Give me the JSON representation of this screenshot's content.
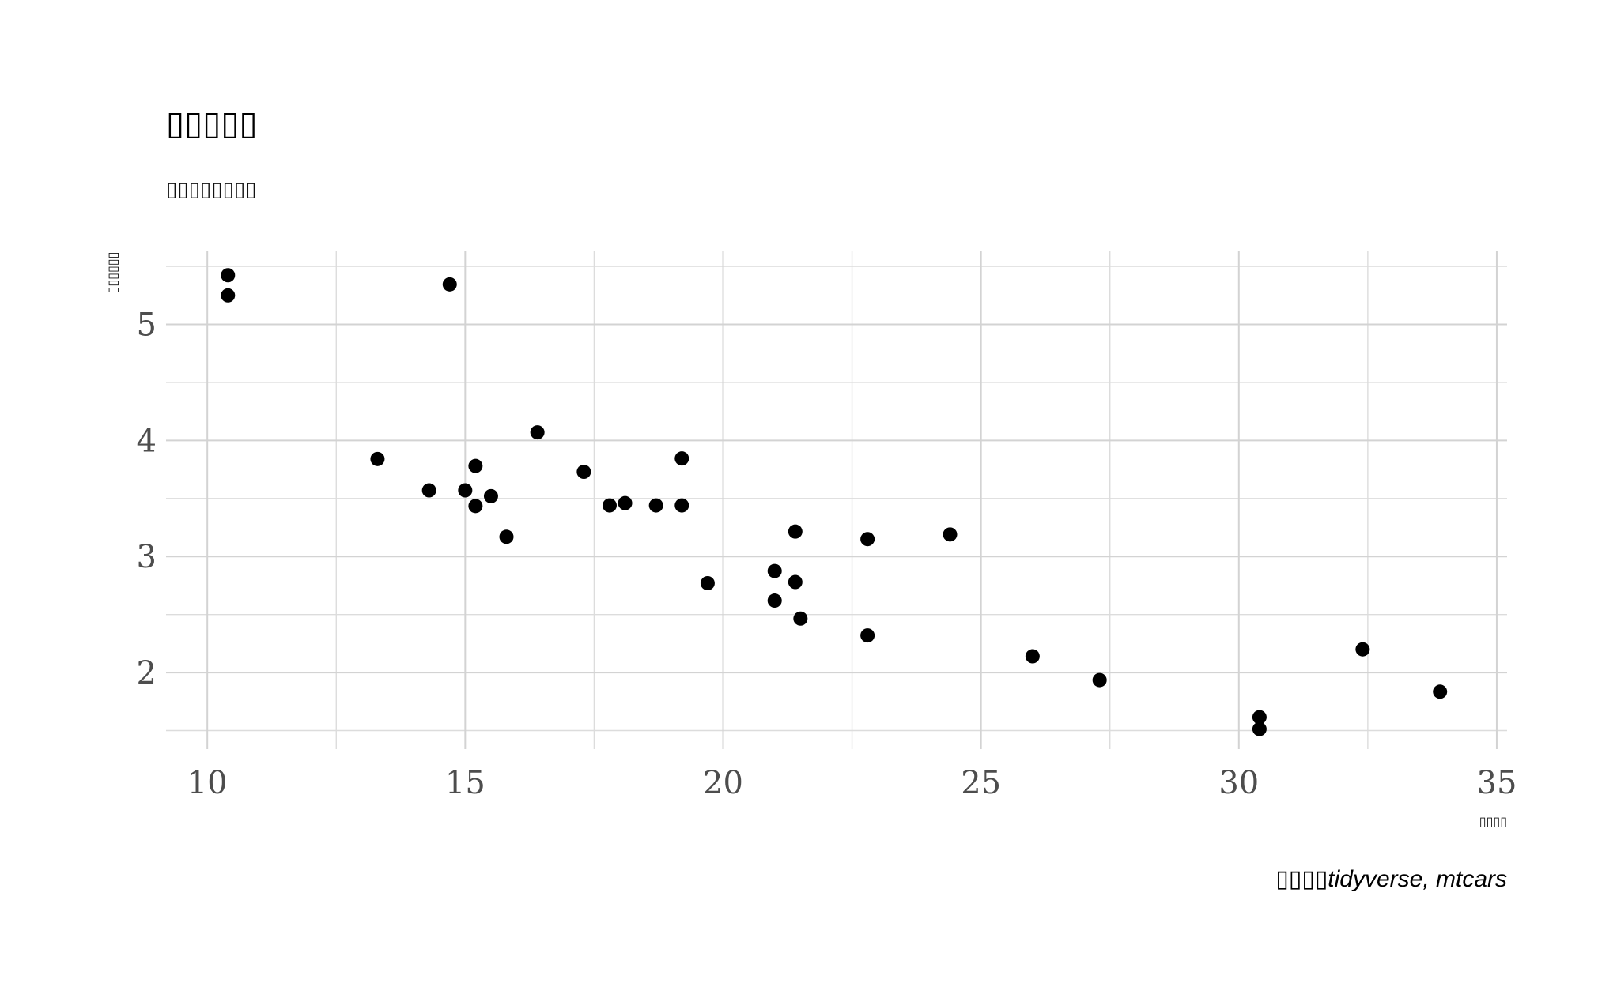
{
  "chart_data": {
    "type": "scatter",
    "title": "▯▯▯▯▯",
    "subtitle": "▯▯▯▯▯▯▯▯",
    "xlabel": "▯▯▯▯",
    "ylabel": "▯▯▯▯▯▯",
    "caption": "▯▯▯▯tidyverse, mtcars",
    "xlim": [
      9.2,
      35.2
    ],
    "ylim": [
      1.34,
      5.63
    ],
    "x_ticks": [
      10,
      15,
      20,
      25,
      30,
      35
    ],
    "y_ticks": [
      2,
      3,
      4,
      5
    ],
    "x_minor": [
      12.5,
      17.5,
      22.5,
      27.5,
      32.5
    ],
    "y_minor": [
      1.5,
      2.5,
      3.5,
      4.5,
      5.5
    ],
    "grid": true,
    "point_color": "#000000",
    "grid_color": "#d3d3d3",
    "points": [
      {
        "x": 21.0,
        "y": 2.62
      },
      {
        "x": 21.0,
        "y": 2.875
      },
      {
        "x": 22.8,
        "y": 2.32
      },
      {
        "x": 21.4,
        "y": 3.215
      },
      {
        "x": 18.7,
        "y": 3.44
      },
      {
        "x": 18.1,
        "y": 3.46
      },
      {
        "x": 14.3,
        "y": 3.57
      },
      {
        "x": 24.4,
        "y": 3.19
      },
      {
        "x": 22.8,
        "y": 3.15
      },
      {
        "x": 19.2,
        "y": 3.44
      },
      {
        "x": 17.8,
        "y": 3.44
      },
      {
        "x": 16.4,
        "y": 4.07
      },
      {
        "x": 17.3,
        "y": 3.73
      },
      {
        "x": 15.2,
        "y": 3.78
      },
      {
        "x": 10.4,
        "y": 5.25
      },
      {
        "x": 10.4,
        "y": 5.424
      },
      {
        "x": 14.7,
        "y": 5.345
      },
      {
        "x": 32.4,
        "y": 2.2
      },
      {
        "x": 30.4,
        "y": 1.615
      },
      {
        "x": 33.9,
        "y": 1.835
      },
      {
        "x": 21.5,
        "y": 2.465
      },
      {
        "x": 15.5,
        "y": 3.52
      },
      {
        "x": 15.2,
        "y": 3.435
      },
      {
        "x": 13.3,
        "y": 3.84
      },
      {
        "x": 19.2,
        "y": 3.845
      },
      {
        "x": 27.3,
        "y": 1.935
      },
      {
        "x": 26.0,
        "y": 2.14
      },
      {
        "x": 30.4,
        "y": 1.513
      },
      {
        "x": 15.8,
        "y": 3.17
      },
      {
        "x": 19.7,
        "y": 2.77
      },
      {
        "x": 15.0,
        "y": 3.57
      },
      {
        "x": 21.4,
        "y": 2.78
      }
    ]
  }
}
